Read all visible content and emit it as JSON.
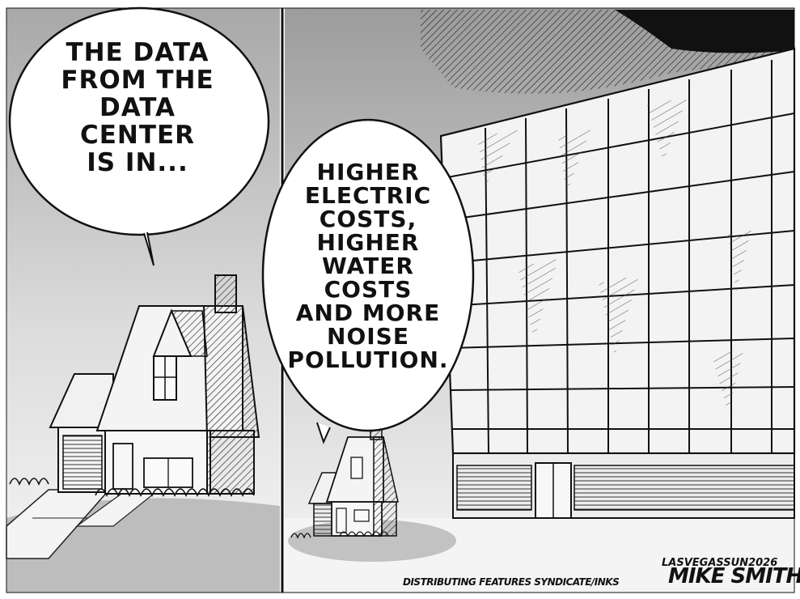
{
  "panels": [
    {
      "speech": "THE DATA\nFROM THE\nDATA\nCENTER\nIS IN..."
    },
    {
      "speech": "HIGHER\nELECTRIC\nCOSTS,\nHIGHER\nWATER\nCOSTS\nAND MORE\nNOISE\nPOLLUTION."
    }
  ],
  "credits": {
    "newspaper": "LASVEGASSUN2026",
    "syndicate": "DISTRIBUTING FEATURES SYNDICATE/INKS",
    "artist": "MIKE SMITH"
  },
  "colors": {
    "sky_light": "#f2f2f2",
    "sky_dark": "#9a9a9a",
    "ink": "#111111",
    "shadow": "#bdbdbd"
  }
}
